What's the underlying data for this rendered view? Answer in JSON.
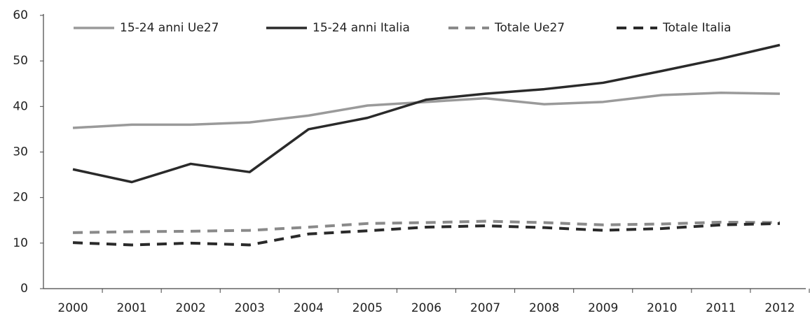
{
  "chart_data": {
    "type": "line",
    "categories": [
      "2000",
      "2001",
      "2002",
      "2003",
      "2004",
      "2005",
      "2006",
      "2007",
      "2008",
      "2009",
      "2010",
      "2011",
      "2012"
    ],
    "series": [
      {
        "name": "15-24 anni Ue27",
        "color": "#9a9a9a",
        "dash": false,
        "values": [
          35.3,
          36,
          36,
          36.5,
          38,
          40.2,
          41,
          41.8,
          40.5,
          41,
          42.5,
          43,
          42.8
        ]
      },
      {
        "name": "15-24 anni Italia",
        "color": "#2a2a2a",
        "dash": false,
        "values": [
          26.2,
          23.4,
          27.4,
          25.6,
          35,
          37.5,
          41.5,
          42.8,
          43.8,
          45.2,
          47.8,
          50.5,
          53.5
        ]
      },
      {
        "name": "Totale Ue27",
        "color": "#8a8a8a",
        "dash": true,
        "values": [
          12.3,
          12.5,
          12.6,
          12.8,
          13.5,
          14.3,
          14.5,
          14.8,
          14.5,
          14,
          14.2,
          14.6,
          14.5
        ]
      },
      {
        "name": "Totale Italia",
        "color": "#2a2a2a",
        "dash": true,
        "values": [
          10.1,
          9.6,
          10,
          9.6,
          12,
          12.7,
          13.5,
          13.8,
          13.4,
          12.8,
          13.2,
          14,
          14.3
        ]
      }
    ],
    "ylim": [
      0,
      60
    ],
    "yticks": [
      0,
      10,
      20,
      30,
      40,
      50,
      60
    ],
    "grid": false
  }
}
